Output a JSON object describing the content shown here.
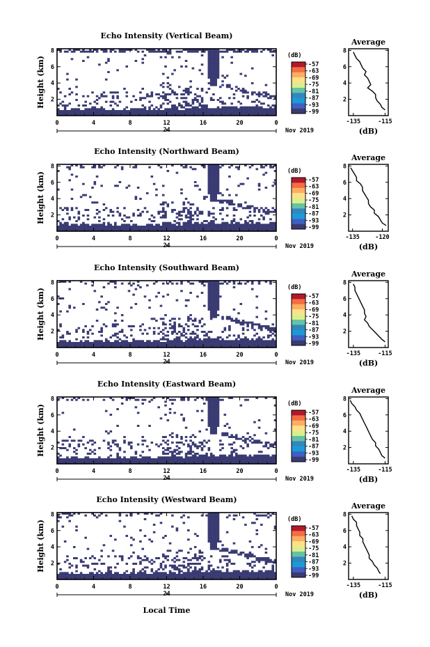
{
  "figure": {
    "bottom_xlabel": "Local Time",
    "date_label": "Nov 2019",
    "colors": {
      "echo": "#3a3b73",
      "background": "#ffffff"
    }
  },
  "colorbar": {
    "unit": "(dB)",
    "ticks": [
      "-57",
      "-63",
      "-69",
      "-75",
      "-81",
      "-87",
      "-93",
      "-99"
    ],
    "colors": [
      "#b2182b",
      "#f46d43",
      "#fdae61",
      "#fee08b",
      "#d9ef8b",
      "#66c2a5",
      "#3288bd",
      "#1a9bd7",
      "#3f5fc4",
      "#3a3b73"
    ]
  },
  "chart_data": [
    {
      "type": "heatmap",
      "title": "Echo Intensity (Vertical Beam)",
      "ylabel": "Height (km)",
      "xticks": [
        "0",
        "4",
        "8",
        "12",
        "16",
        "20",
        "0"
      ],
      "xtick_sub": "24",
      "ylim": [
        0,
        8.2
      ],
      "yticks": [
        "8",
        "6",
        "4",
        "2"
      ],
      "xlim": [
        0,
        24
      ],
      "profile": {
        "title": "Average",
        "xlabel": "(dB)",
        "xticks": [
          "-135",
          "-115"
        ],
        "xlim": [
          -138,
          -113
        ],
        "heights": [
          7.8,
          7.4,
          7.0,
          6.6,
          6.2,
          5.8,
          5.4,
          5.0,
          4.6,
          4.2,
          3.8,
          3.4,
          3.0,
          2.6,
          2.2,
          1.8,
          1.4,
          1.0,
          0.7
        ],
        "values": [
          -135,
          -134,
          -133,
          -131,
          -130,
          -129,
          -127,
          -128,
          -126,
          -125,
          -124,
          -126,
          -123,
          -121,
          -121,
          -120,
          -118,
          -117,
          -115
        ]
      }
    },
    {
      "type": "heatmap",
      "title": "Echo Intensity (Northward Beam)",
      "ylabel": "Height (km)",
      "xticks": [
        "0",
        "4",
        "8",
        "12",
        "16",
        "20",
        "0"
      ],
      "xtick_sub": "24",
      "ylim": [
        0,
        8.2
      ],
      "yticks": [
        "8",
        "6",
        "4",
        "2"
      ],
      "xlim": [
        0,
        24
      ],
      "profile": {
        "title": "Average",
        "xlabel": "(dB)",
        "xticks": [
          "-135",
          "-120"
        ],
        "xlim": [
          -137,
          -117
        ],
        "heights": [
          7.8,
          7.4,
          7.0,
          6.6,
          6.2,
          5.8,
          5.4,
          5.0,
          4.6,
          4.2,
          3.8,
          3.4,
          3.0,
          2.6,
          2.2,
          1.8,
          1.4,
          1.0,
          0.7
        ],
        "values": [
          -136,
          -135,
          -134,
          -133,
          -133,
          -131,
          -130,
          -130,
          -129,
          -128,
          -127,
          -127,
          -126,
          -124,
          -124,
          -122,
          -121,
          -120,
          -118
        ]
      }
    },
    {
      "type": "heatmap",
      "title": "Echo Intensity (Southward Beam)",
      "ylabel": "Height (km)",
      "xticks": [
        "0",
        "4",
        "8",
        "12",
        "16",
        "20",
        "0"
      ],
      "xtick_sub": "24",
      "ylim": [
        0,
        8.2
      ],
      "yticks": [
        "8",
        "6",
        "4",
        "2"
      ],
      "xlim": [
        0,
        24
      ],
      "profile": {
        "title": "Average",
        "xlabel": "(dB)",
        "xticks": [
          "-135",
          "-115"
        ],
        "xlim": [
          -138,
          -113
        ],
        "heights": [
          7.8,
          7.4,
          7.0,
          6.6,
          6.2,
          5.8,
          5.4,
          5.0,
          4.6,
          4.2,
          3.8,
          3.4,
          3.0,
          2.6,
          2.2,
          1.8,
          1.4,
          1.0,
          0.7
        ],
        "values": [
          -135,
          -134,
          -134,
          -133,
          -132,
          -131,
          -130,
          -129,
          -128,
          -128,
          -127,
          -128,
          -126,
          -125,
          -123,
          -121,
          -119,
          -117,
          -115
        ]
      }
    },
    {
      "type": "heatmap",
      "title": "Echo Intensity (Eastward Beam)",
      "ylabel": "Height (km)",
      "xticks": [
        "0",
        "4",
        "8",
        "12",
        "16",
        "20",
        "0"
      ],
      "xtick_sub": "24",
      "ylim": [
        0,
        8.2
      ],
      "yticks": [
        "8",
        "6",
        "4",
        "2"
      ],
      "xlim": [
        0,
        24
      ],
      "profile": {
        "title": "Average",
        "xlabel": "(dB)",
        "xticks": [
          "-135",
          "-115"
        ],
        "xlim": [
          -138,
          -113
        ],
        "heights": [
          7.8,
          7.4,
          7.0,
          6.6,
          6.2,
          5.8,
          5.4,
          5.0,
          4.6,
          4.2,
          3.8,
          3.4,
          3.0,
          2.6,
          2.2,
          1.8,
          1.4,
          1.0,
          0.7
        ],
        "values": [
          -137,
          -136,
          -134,
          -133,
          -131,
          -130,
          -129,
          -128,
          -127,
          -126,
          -125,
          -124,
          -123,
          -121,
          -121,
          -119,
          -118,
          -117,
          -115
        ]
      }
    },
    {
      "type": "heatmap",
      "title": "Echo Intensity (Westward Beam)",
      "ylabel": "Height (km)",
      "xticks": [
        "0",
        "4",
        "8",
        "12",
        "16",
        "20",
        "0"
      ],
      "xtick_sub": "24",
      "ylim": [
        0,
        8.2
      ],
      "yticks": [
        "8",
        "6",
        "4",
        "2"
      ],
      "xlim": [
        0,
        24
      ],
      "profile": {
        "title": "Average",
        "xlabel": "(dB)",
        "xticks": [
          "-135",
          "-115"
        ],
        "xlim": [
          -138,
          -113
        ],
        "heights": [
          7.8,
          7.4,
          7.0,
          6.6,
          6.2,
          5.8,
          5.4,
          5.0,
          4.6,
          4.2,
          3.8,
          3.4,
          3.0,
          2.6,
          2.2,
          1.8,
          1.4,
          1.0,
          0.7
        ],
        "values": [
          -136,
          -135,
          -133,
          -133,
          -132,
          -131,
          -131,
          -129,
          -129,
          -128,
          -127,
          -126,
          -125,
          -125,
          -123,
          -122,
          -120,
          -119,
          -118
        ]
      }
    }
  ]
}
